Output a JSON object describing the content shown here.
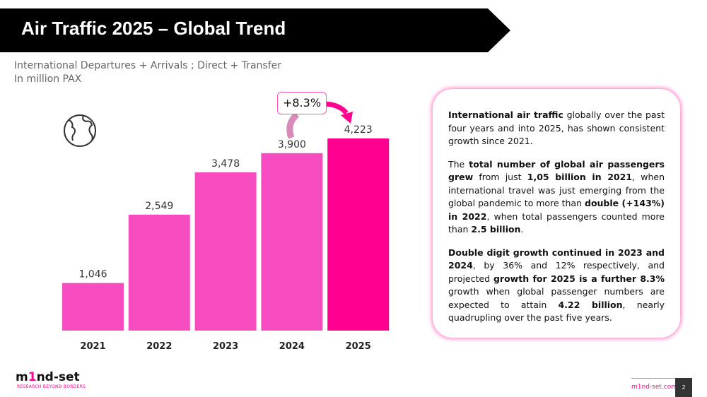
{
  "header": {
    "title": "Air Traffic 2025 – Global Trend"
  },
  "subtitle": {
    "line1": "International Departures + Arrivals ; Direct + Transfer",
    "line2": "In million PAX"
  },
  "chart_data": {
    "type": "bar",
    "categories": [
      "2021",
      "2022",
      "2023",
      "2024",
      "2025"
    ],
    "values": [
      1046,
      2549,
      3478,
      3900,
      4223
    ],
    "labels": [
      "1,046",
      "2,549",
      "3,478",
      "3,900",
      "4,223"
    ],
    "colors": [
      "#f64cc0",
      "#f64cc0",
      "#f64cc0",
      "#f64cc0",
      "#ff0090"
    ],
    "annotation": "+8.3%",
    "ylim": [
      0,
      4223
    ],
    "grid": false
  },
  "icons": {
    "globe": "globe-icon"
  },
  "panel": {
    "paragraphs": [
      [
        {
          "b": true,
          "t": "International air traffic"
        },
        {
          "t": " globally over the past four years and into 2025, has shown consistent growth since 2021."
        }
      ],
      [
        {
          "t": "The "
        },
        {
          "b": true,
          "t": "total number of global air passengers grew"
        },
        {
          "t": " from just "
        },
        {
          "b": true,
          "t": "1,05 billion in 2021"
        },
        {
          "t": ", when international travel was just emerging from the global pandemic to more than "
        },
        {
          "b": true,
          "t": "double (+143%) in 2022"
        },
        {
          "t": ", when total passengers counted more than "
        },
        {
          "b": true,
          "t": "2.5 billion"
        },
        {
          "t": "."
        }
      ],
      [
        {
          "b": true,
          "t": "Double digit growth continued in 2023 and 2024"
        },
        {
          "t": ", by 36% and 12% respectively, and projected "
        },
        {
          "b": true,
          "t": "growth for 2025 is a further 8.3%"
        },
        {
          "t": " growth when global passenger numbers are expected to attain "
        },
        {
          "b": true,
          "t": "4.22 billion"
        },
        {
          "t": ", nearly quadrupling over the past five years."
        }
      ]
    ]
  },
  "footer": {
    "logo": "m1nd-set",
    "tagline": "RESEARCH BEYOND BORDERS",
    "url": "m1nd-set.com",
    "page": "2"
  }
}
